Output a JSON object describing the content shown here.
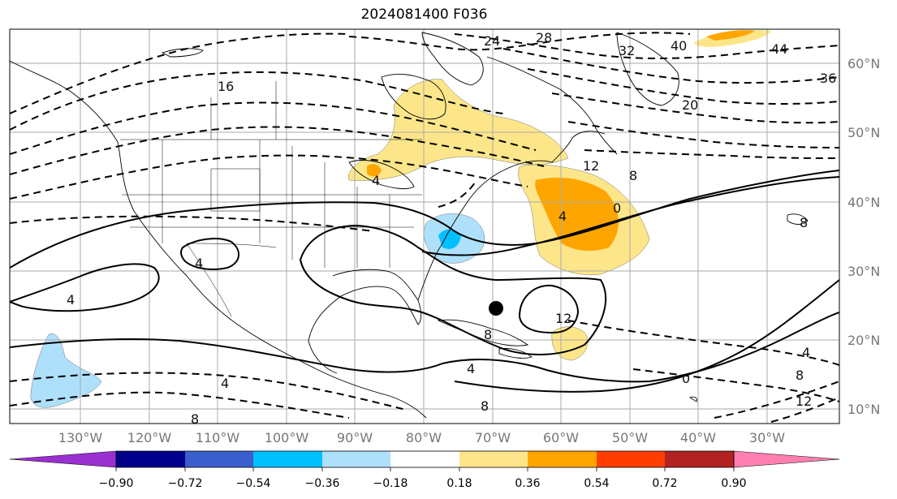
{
  "title": "2024081400 F036",
  "longitude_labels": [
    "130°W",
    "120°W",
    "110°W",
    "100°W",
    "90°W",
    "80°W",
    "70°W",
    "60°W",
    "50°W",
    "40°W",
    "30°W"
  ],
  "latitude_labels": [
    "60°N",
    "50°N",
    "40°N",
    "30°N",
    "20°N",
    "10°N"
  ],
  "contour_labels": [
    "24",
    "28",
    "32",
    "40",
    "44",
    "36",
    "20",
    "16",
    "12",
    "8",
    "4",
    "0",
    "4",
    "8",
    "4",
    "12",
    "8",
    "4",
    "4",
    "0",
    "4",
    "8",
    "12",
    "8",
    "8",
    "4"
  ],
  "colorbar": {
    "ticks": [
      "−0.90",
      "−0.72",
      "−0.54",
      "−0.36",
      "−0.18",
      "0.18",
      "0.36",
      "0.54",
      "0.72",
      "0.90"
    ],
    "colors": [
      "#9b30d0",
      "#00008b",
      "#3a5fcd",
      "#00bfff",
      "#aee0fb",
      "#ffffff",
      "#fde68a",
      "#ffa500",
      "#ff3d00",
      "#b22222",
      "#ff80b0"
    ]
  },
  "marker": {
    "label": "storm-center",
    "lon": -70,
    "lat": 24.5
  }
}
